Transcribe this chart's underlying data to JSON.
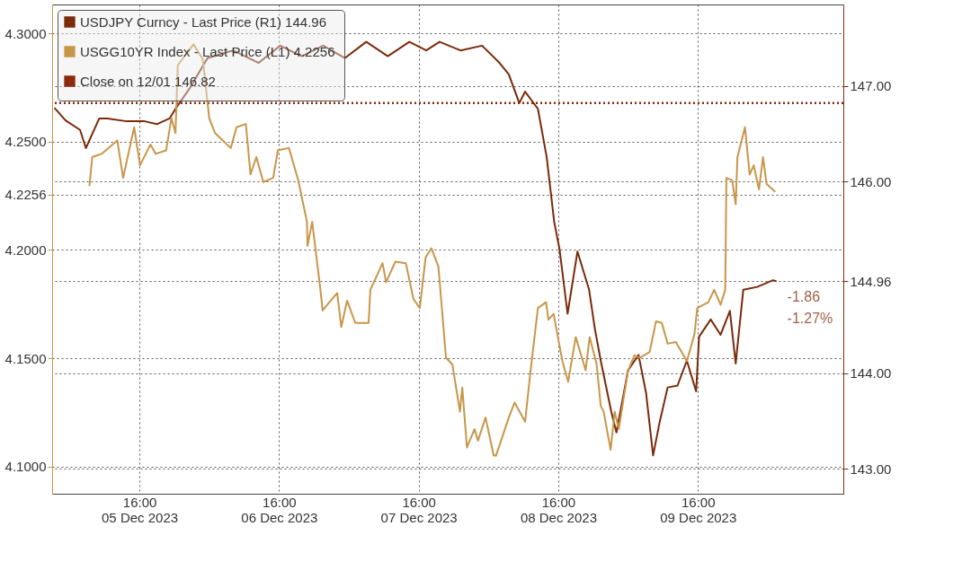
{
  "chart_data": {
    "type": "line",
    "xlim": [
      "2023-12-05T01:00",
      "2023-12-10T17:00"
    ],
    "xticks": [
      {
        "value": "2023-12-05T16:00",
        "label": "16:00\n05 Dec 2023"
      },
      {
        "value": "2023-12-06T16:00",
        "label": "16:00\n06 Dec 2023"
      },
      {
        "value": "2023-12-07T16:00",
        "label": "16:00\n07 Dec 2023"
      },
      {
        "value": "2023-12-08T16:00",
        "label": "16:00\n08 Dec 2023"
      },
      {
        "value": "2023-12-09T16:00",
        "label": "16:00\n09 Dec 2023"
      }
    ],
    "ylim": [
      4.0874,
      4.3134
    ],
    "yticks": [
      {
        "value": 4.1,
        "label": "4.1000"
      },
      {
        "value": 4.15,
        "label": "4.1500"
      },
      {
        "value": 4.2,
        "label": "4.2000"
      },
      {
        "value": 4.25,
        "label": "4.2500"
      },
      {
        "value": 4.3,
        "label": "4.3000"
      },
      {
        "value": 4.2256,
        "label": "4.2256"
      }
    ],
    "y2lim": [
      142.74,
      147.85
    ],
    "y2ticks": [
      {
        "value": 143,
        "label": "143.00"
      },
      {
        "value": 144,
        "label": "144.00"
      },
      {
        "value": 146,
        "label": "146.00"
      },
      {
        "value": 147,
        "label": "147.00"
      },
      {
        "value": 144.96,
        "label": "144.96"
      }
    ],
    "grid": true,
    "legend": "top left",
    "line_style": "solid",
    "marker": "none",
    "series": [
      {
        "name": "USDJPY Curncy - Last Price (R1)  144.96",
        "color": "#7a2a0a",
        "axis": "y2",
        "x": [
          "2023-12-05T01:24",
          "2023-12-05T03:18",
          "2023-12-05T05:48",
          "2023-12-05T06:48",
          "2023-12-05T09:06",
          "2023-12-05T10:30",
          "2023-12-05T13:48",
          "2023-12-05T16:54",
          "2023-12-05T19:00",
          "2023-12-05T21:12",
          "2023-12-05T22:12",
          "2023-12-06T00:42",
          "2023-12-06T03:42",
          "2023-12-06T08:06",
          "2023-12-06T12:30",
          "2023-12-06T16:12",
          "2023-12-06T19:54",
          "2023-12-06T23:36",
          "2023-12-07T03:18",
          "2023-12-07T07:00",
          "2023-12-07T10:42",
          "2023-12-07T14:24",
          "2023-12-07T17:18",
          "2023-12-07T19:36",
          "2023-12-07T23:12",
          "2023-12-08T02:54",
          "2023-12-08T05:54",
          "2023-12-08T07:30",
          "2023-12-08T09:18",
          "2023-12-08T10:18",
          "2023-12-08T12:30",
          "2023-12-08T14:00",
          "2023-12-08T15:18",
          "2023-12-08T16:12",
          "2023-12-08T17:36",
          "2023-12-08T19:18",
          "2023-12-08T21:18",
          "2023-12-08T22:18",
          "2023-12-08T23:18",
          "2023-12-09T01:06",
          "2023-12-09T02:00",
          "2023-12-09T04:00",
          "2023-12-09T05:48",
          "2023-12-09T07:06",
          "2023-12-09T08:18",
          "2023-12-09T09:24",
          "2023-12-09T10:48",
          "2023-12-09T12:30",
          "2023-12-09T14:06",
          "2023-12-09T15:42",
          "2023-12-09T16:12",
          "2023-12-09T18:12",
          "2023-12-09T19:54",
          "2023-12-09T21:30",
          "2023-12-09T22:30",
          "2023-12-09T23:48",
          "2023-12-10T02:12",
          "2023-12-10T04:54",
          "2023-12-10T05:30"
        ],
        "values": [
          146.77,
          146.64,
          146.54,
          146.35,
          146.66,
          146.66,
          146.63,
          146.63,
          146.6,
          146.66,
          146.76,
          146.98,
          147.29,
          147.37,
          147.24,
          147.42,
          147.31,
          147.42,
          147.29,
          147.46,
          147.31,
          147.46,
          147.37,
          147.46,
          147.37,
          147.42,
          147.24,
          147.12,
          146.82,
          146.94,
          146.76,
          146.26,
          145.58,
          145.3,
          144.62,
          145.27,
          144.87,
          144.46,
          144.13,
          143.6,
          143.38,
          144.03,
          144.19,
          143.79,
          143.14,
          143.48,
          143.85,
          143.87,
          144.13,
          143.81,
          144.38,
          144.56,
          144.4,
          144.65,
          144.1,
          144.87,
          144.9,
          144.97,
          144.96
        ]
      },
      {
        "name": "USGG10YR Index - Last Price (L1)  4.2256",
        "color": "#c8964a",
        "x": [
          "2023-12-05T07:24",
          "2023-12-05T07:54",
          "2023-12-05T09:30",
          "2023-12-05T12:12",
          "2023-12-05T13:12",
          "2023-12-05T15:06",
          "2023-12-05T16:06",
          "2023-12-05T17:54",
          "2023-12-05T18:48",
          "2023-12-05T20:36",
          "2023-12-05T21:30",
          "2023-12-05T22:12",
          "2023-12-05T22:36",
          "2023-12-06T01:18",
          "2023-12-06T02:54",
          "2023-12-06T04:00",
          "2023-12-06T05:00",
          "2023-12-06T07:42",
          "2023-12-06T08:42",
          "2023-12-06T10:18",
          "2023-12-06T11:06",
          "2023-12-06T12:06",
          "2023-12-06T13:18",
          "2023-12-06T15:00",
          "2023-12-06T15:48",
          "2023-12-06T17:42",
          "2023-12-06T19:18",
          "2023-12-06T20:48",
          "2023-12-06T20:54",
          "2023-12-06T21:42",
          "2023-12-06T23:00",
          "2023-12-06T23:30",
          "2023-12-07T00:18",
          "2023-12-07T02:00",
          "2023-12-07T02:42",
          "2023-12-07T03:42",
          "2023-12-07T05:06",
          "2023-12-07T07:24",
          "2023-12-07T07:42",
          "2023-12-07T09:48",
          "2023-12-07T10:24",
          "2023-12-07T12:00",
          "2023-12-07T13:48",
          "2023-12-07T15:06",
          "2023-12-07T16:12",
          "2023-12-07T17:12",
          "2023-12-07T18:12",
          "2023-12-07T19:24",
          "2023-12-07T20:42",
          "2023-12-07T21:48",
          "2023-12-07T23:06",
          "2023-12-07T23:30",
          "2023-12-08T00:18",
          "2023-12-08T01:36",
          "2023-12-08T02:12",
          "2023-12-08T03:30",
          "2023-12-08T04:54",
          "2023-12-08T05:18",
          "2023-12-08T07:30",
          "2023-12-08T08:30",
          "2023-12-08T10:18",
          "2023-12-08T11:12",
          "2023-12-08T12:30",
          "2023-12-08T13:54",
          "2023-12-08T14:18",
          "2023-12-08T15:12",
          "2023-12-08T16:42",
          "2023-12-08T17:42",
          "2023-12-08T19:00",
          "2023-12-08T20:42",
          "2023-12-08T21:24",
          "2023-12-08T22:36",
          "2023-12-08T23:18",
          "2023-12-08T23:48",
          "2023-12-09T01:00",
          "2023-12-09T01:42",
          "2023-12-09T02:24",
          "2023-12-09T04:00",
          "2023-12-09T05:06",
          "2023-12-09T06:00",
          "2023-12-09T07:42",
          "2023-12-09T08:48",
          "2023-12-09T09:48",
          "2023-12-09T10:48",
          "2023-12-09T12:12",
          "2023-12-09T14:06",
          "2023-12-09T15:24",
          "2023-12-09T15:54",
          "2023-12-09T17:48",
          "2023-12-09T18:48",
          "2023-12-09T19:54",
          "2023-12-09T20:42",
          "2023-12-09T20:54",
          "2023-12-09T21:54",
          "2023-12-09T22:30",
          "2023-12-09T22:48",
          "2023-12-10T00:06",
          "2023-12-10T00:54",
          "2023-12-10T01:36",
          "2023-12-10T02:30",
          "2023-12-10T03:12",
          "2023-12-10T03:48",
          "2023-12-10T05:18"
        ],
        "values": [
          4.2295,
          4.2429,
          4.2444,
          4.2506,
          4.2333,
          4.2567,
          4.2391,
          4.2487,
          4.2444,
          4.246,
          4.2609,
          4.254,
          4.2854,
          4.295,
          4.2881,
          4.2609,
          4.254,
          4.2471,
          4.2567,
          4.2582,
          4.2349,
          4.2429,
          4.2314,
          4.2333,
          4.246,
          4.2471,
          4.2322,
          4.213,
          4.2019,
          4.213,
          4.1843,
          4.172,
          4.1747,
          4.1801,
          4.1644,
          4.1766,
          4.1663,
          4.1663,
          4.1816,
          4.1939,
          4.1851,
          4.1946,
          4.1939,
          4.1774,
          4.1732,
          4.1966,
          4.2008,
          4.1923,
          4.1502,
          4.1471,
          4.1253,
          4.1364,
          4.1088,
          4.1172,
          4.1119,
          4.1226,
          4.105,
          4.105,
          4.1226,
          4.1295,
          4.1207,
          4.1433,
          4.1732,
          4.1759,
          4.1678,
          4.1705,
          4.1487,
          4.1391,
          4.1598,
          4.1444,
          4.1598,
          4.1471,
          4.128,
          4.1253,
          4.1077,
          4.1253,
          4.1172,
          4.1444,
          4.1513,
          4.1502,
          4.1529,
          4.167,
          4.1663,
          4.1567,
          4.1575,
          4.1487,
          4.1609,
          4.1732,
          4.1759,
          4.1816,
          4.1747,
          4.1816,
          4.2333,
          4.2322,
          4.2211,
          4.2429,
          4.2567,
          4.2349,
          4.2391,
          4.228,
          4.2429,
          4.2306,
          4.2268
        ]
      }
    ],
    "ref_lines": [
      {
        "axis": "y2",
        "value": 146.82,
        "label": "Close on 12/01  146.82",
        "color": "#8b2a0c",
        "line_style": "dotted"
      }
    ],
    "annotations": [
      "-1.86",
      "-1.27%"
    ]
  }
}
